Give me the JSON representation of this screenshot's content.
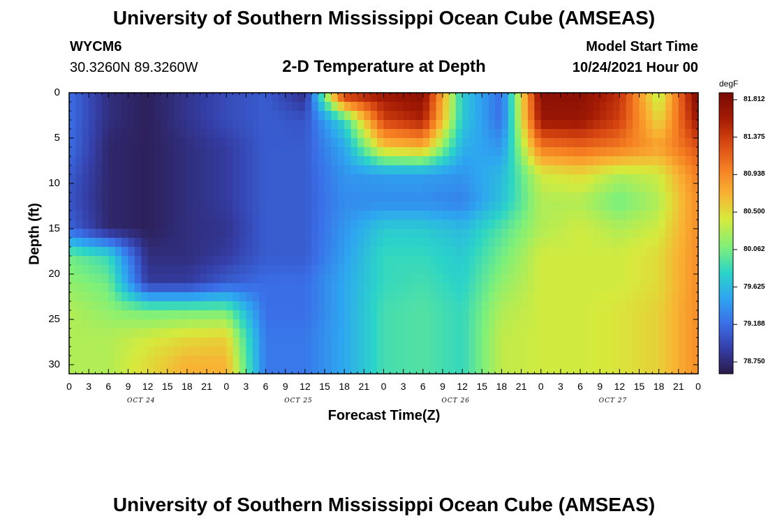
{
  "header": {
    "title": "University of Southern Mississippi Ocean Cube (AMSEAS)",
    "station": "WYCM6",
    "location": "30.3260N  89.3260W",
    "plot_title": "2-D Temperature at Depth",
    "model_start_label": "Model Start Time",
    "model_start_value": "10/24/2021 Hour 00"
  },
  "footer": {
    "title": "University of Southern Mississippi Ocean Cube (AMSEAS)"
  },
  "colorbar": {
    "units": "degF",
    "labels": [
      "81.812",
      "81.375",
      "80.938",
      "80.500",
      "80.062",
      "79.625",
      "79.188",
      "78.750"
    ]
  },
  "colors": {
    "scale": [
      "#2b1a4a",
      "#353fa8",
      "#3a6fe8",
      "#2ea6f0",
      "#2bd4c8",
      "#7ef07a",
      "#d6ea3c",
      "#f9b233",
      "#f57e22",
      "#d84812",
      "#a31a04",
      "#7a0a04"
    ]
  },
  "chart_data": {
    "type": "heatmap",
    "title": "2-D Temperature at Depth",
    "xlabel": "Forecast Time(Z)",
    "ylabel": "Depth (ft)",
    "x_unit": "hours since 10/24/2021 00Z",
    "x_range": [
      0,
      96
    ],
    "x_tick_labels": [
      "0",
      "3",
      "6",
      "9",
      "12",
      "15",
      "18",
      "21",
      "0",
      "3",
      "6",
      "9",
      "12",
      "15",
      "18",
      "21",
      "0",
      "3",
      "6",
      "9",
      "12",
      "15",
      "18",
      "21",
      "0",
      "3",
      "6",
      "9",
      "12",
      "15",
      "18",
      "21",
      "0"
    ],
    "date_labels": [
      {
        "label": "OCT 24",
        "hour": 11
      },
      {
        "label": "OCT 25",
        "hour": 35
      },
      {
        "label": "OCT 26",
        "hour": 59
      },
      {
        "label": "OCT 27",
        "hour": 83
      }
    ],
    "y_range": [
      0,
      31
    ],
    "y_ticks": [
      0,
      5,
      10,
      15,
      20,
      25,
      30
    ],
    "value_range": [
      78.75,
      81.812
    ],
    "value_unit": "degF",
    "depth_levels_ft": [
      0,
      3,
      6,
      9,
      12,
      15,
      18,
      21,
      24,
      27,
      30
    ],
    "hours": [
      0,
      6,
      12,
      18,
      24,
      30,
      36,
      42,
      48,
      54,
      60,
      66,
      72,
      78,
      84,
      90,
      96
    ],
    "temperature_grid": [
      [
        79.3,
        78.9,
        78.8,
        78.95,
        79.1,
        79.2,
        78.9,
        81.5,
        81.6,
        81.7,
        79.8,
        79.3,
        81.7,
        81.7,
        81.4,
        80.3,
        81.8
      ],
      [
        79.3,
        78.9,
        78.8,
        78.95,
        79.1,
        79.2,
        79.15,
        79.9,
        81.3,
        81.5,
        79.8,
        79.3,
        81.6,
        81.6,
        81.3,
        80.5,
        81.6
      ],
      [
        79.3,
        78.85,
        78.8,
        78.9,
        79.0,
        79.2,
        79.2,
        79.6,
        80.6,
        80.7,
        79.65,
        79.5,
        81.0,
        81.1,
        81.0,
        80.8,
        81.2
      ],
      [
        79.2,
        78.85,
        78.8,
        78.9,
        79.0,
        79.2,
        79.2,
        79.5,
        79.55,
        79.55,
        79.5,
        79.7,
        80.4,
        80.5,
        80.3,
        80.4,
        81.0
      ],
      [
        79.15,
        78.85,
        78.8,
        78.9,
        79.0,
        79.2,
        79.2,
        79.45,
        79.45,
        79.45,
        79.4,
        79.75,
        80.3,
        80.3,
        80.1,
        80.3,
        80.9
      ],
      [
        79.25,
        78.85,
        78.8,
        78.9,
        78.95,
        79.2,
        79.2,
        79.5,
        79.8,
        79.8,
        79.7,
        80.0,
        80.3,
        80.4,
        80.3,
        80.4,
        80.9
      ],
      [
        80.1,
        79.9,
        78.9,
        78.9,
        79.0,
        79.2,
        79.2,
        79.55,
        79.9,
        79.9,
        79.8,
        80.1,
        80.4,
        80.4,
        80.4,
        80.5,
        80.9
      ],
      [
        80.2,
        80.1,
        79.0,
        79.0,
        79.2,
        79.3,
        79.3,
        79.6,
        79.9,
        79.95,
        79.85,
        80.2,
        80.4,
        80.4,
        80.4,
        80.5,
        80.9
      ],
      [
        80.3,
        80.2,
        80.1,
        80.1,
        80.1,
        79.3,
        79.3,
        79.6,
        79.95,
        80.0,
        79.9,
        80.3,
        80.4,
        80.4,
        80.45,
        80.55,
        80.9
      ],
      [
        80.3,
        80.3,
        80.4,
        80.5,
        80.55,
        79.35,
        79.35,
        79.6,
        79.95,
        80.0,
        79.9,
        80.35,
        80.4,
        80.4,
        80.45,
        80.55,
        80.9
      ],
      [
        80.3,
        80.3,
        80.5,
        80.7,
        80.7,
        79.35,
        79.35,
        79.6,
        79.95,
        80.0,
        79.9,
        80.35,
        80.4,
        80.4,
        80.45,
        80.55,
        80.9
      ]
    ]
  }
}
